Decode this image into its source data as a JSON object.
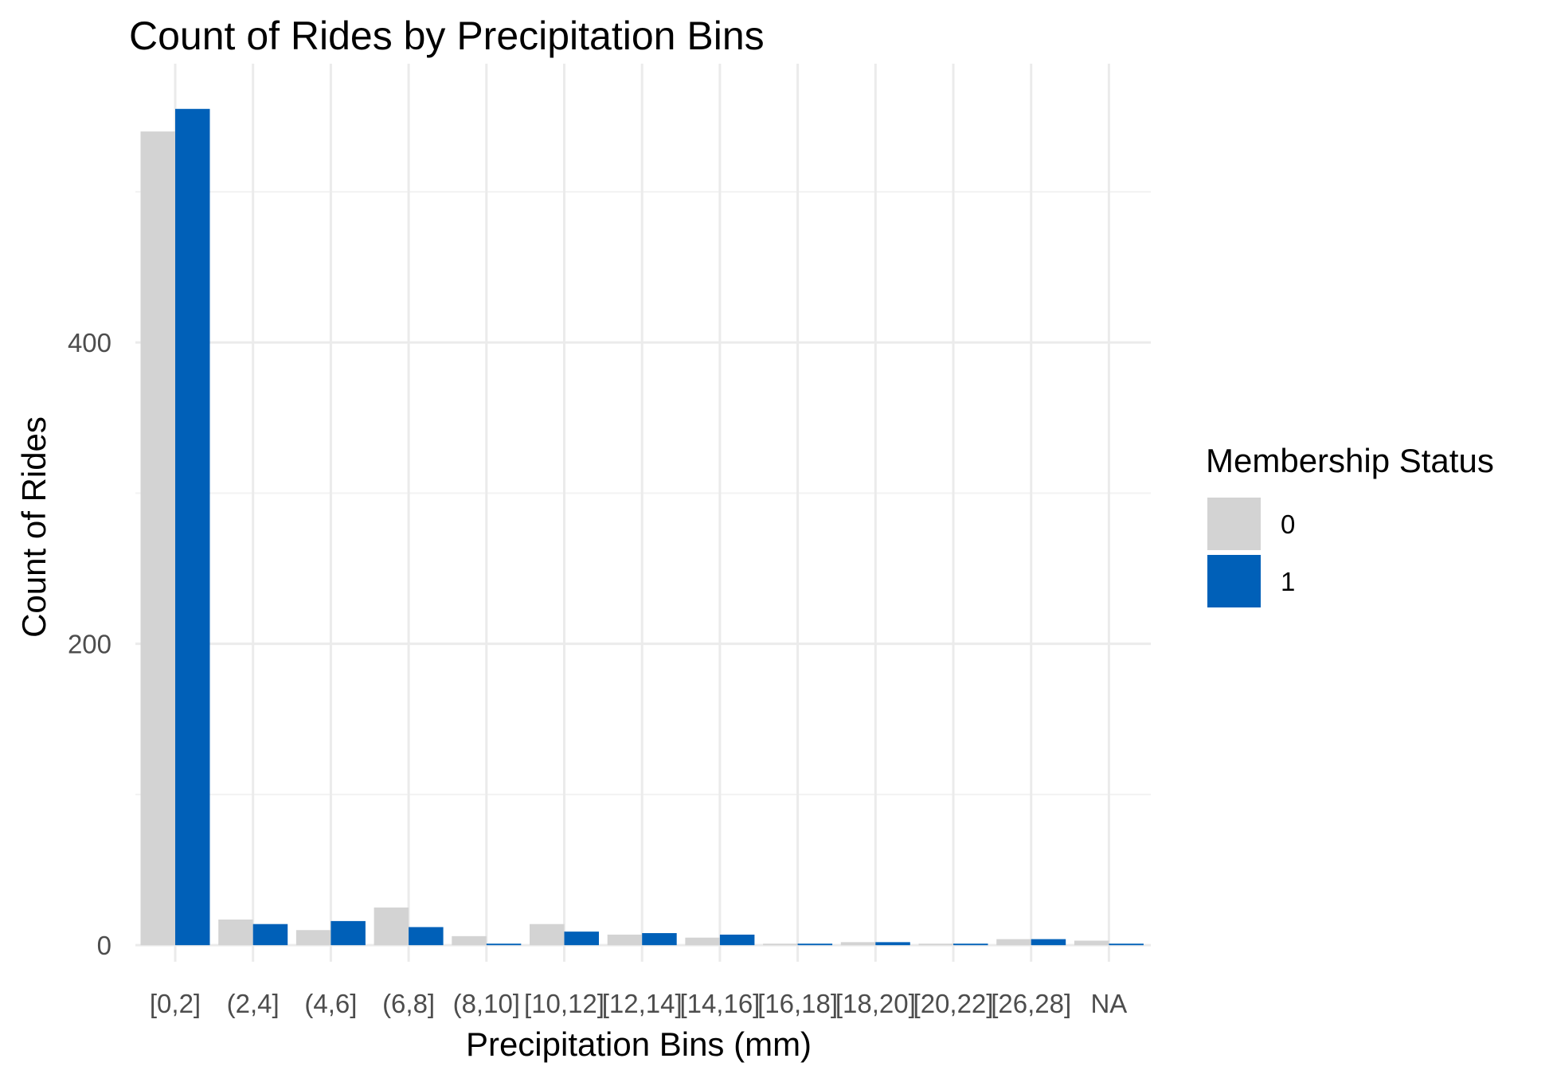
{
  "chart_data": {
    "type": "bar",
    "title": "Count of Rides by Precipitation Bins",
    "xlabel": "Precipitation Bins (mm)",
    "ylabel": "Count of Rides",
    "categories": [
      "[0,2]",
      "(2,4]",
      "(4,6]",
      "(6,8]",
      "(8,10]",
      "[10,12]",
      "[12,14]",
      "[14,16]",
      "[16,18]",
      "[18,20]",
      "[20,22]",
      "[26,28]",
      "NA"
    ],
    "series": [
      {
        "name": "0",
        "color": "#d3d3d3",
        "values": [
          540,
          17,
          10,
          25,
          6,
          14,
          7,
          5,
          1,
          2,
          1,
          4,
          3
        ]
      },
      {
        "name": "1",
        "color": "#0060b8",
        "values": [
          555,
          14,
          16,
          12,
          1,
          9,
          8,
          7,
          1,
          2,
          1,
          4,
          1
        ]
      }
    ],
    "ylim": [
      -11,
      585
    ],
    "y_ticks": [
      0,
      200,
      400
    ],
    "grid": true,
    "legend": {
      "title": "Membership Status",
      "position": "right"
    }
  }
}
